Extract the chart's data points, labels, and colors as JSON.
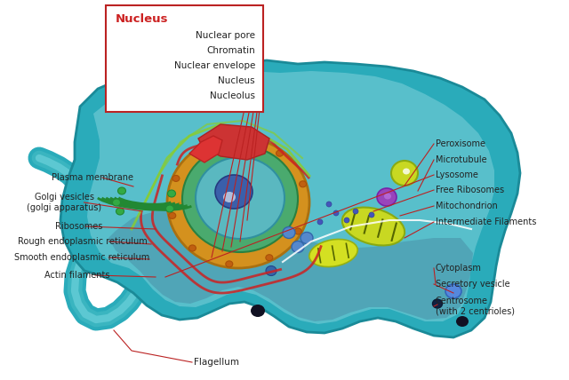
{
  "bg_color": "#ffffff",
  "cell_outer_color": "#2aabba",
  "cell_mid_color": "#45c0cc",
  "cell_inner_color": "#5bcad6",
  "cell_deep_color": "#6bbec8",
  "nucleus_gold_color": "#d4911e",
  "nucleus_green_color": "#4aaa6e",
  "nucleus_teal_color": "#5ab8c0",
  "nucleolus_color": "#3a5faa",
  "er_rough_color": "#cc2222",
  "er_smooth_color": "#88cc33",
  "golgi_color": "#228833",
  "mito_color": "#aac822",
  "mito_inner_color": "#336600",
  "perox_color": "#ccdd44",
  "lyso_color": "#9944bb",
  "ribo_color": "#4455bb",
  "vesicle_color": "#4477cc",
  "secretory_color": "#5588dd",
  "centrosome_color": "#111133",
  "dark_spot_color": "#111122",
  "line_color": "#bb2222",
  "label_color": "#222222",
  "nucleus_label_color": "#cc2222",
  "title": "Nucleus",
  "nucleus_labels": [
    "Nuclear pore",
    "Chromatin",
    "Nuclear envelope",
    "Nucleus",
    "Nucleolus"
  ],
  "left_labels": [
    "Plasma membrane",
    "Golgi vesicles\n(golgi apparatus)",
    "Ribosomes",
    "Rough endoplasmic reticulum",
    "Smooth endoplasmic reticulum",
    "Actin filaments"
  ],
  "right_labels": [
    "Peroxisome",
    "Microtubule",
    "Lysosome",
    "Free Ribosomes",
    "Mitochondrion",
    "Intermediate Filaments"
  ],
  "bottom_right_labels": [
    "Cytoplasm",
    "Secretory vesicle",
    "Centrosome\n(with 2 centrioles)"
  ],
  "flagellum_label": "Flagellum"
}
